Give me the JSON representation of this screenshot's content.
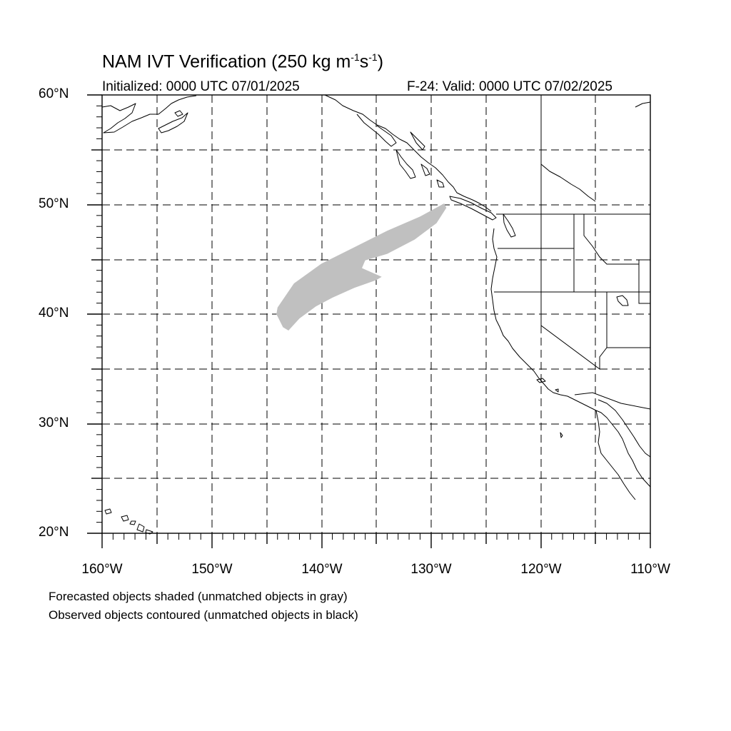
{
  "title": {
    "main": "NAM IVT Verification (250 kg m",
    "exp1": "-1",
    "mid": "s",
    "exp2": "-1",
    "end": ")"
  },
  "subtitle_left": "Initialized: 0000 UTC 07/01/2025",
  "subtitle_right": "F-24: Valid: 0000 UTC 07/02/2025",
  "map_extent": {
    "lon": [
      -160,
      -110
    ],
    "lat": [
      20,
      60
    ]
  },
  "y_tick_labels": [
    "60°N",
    "50°N",
    "40°N",
    "30°N",
    "20°N"
  ],
  "x_tick_labels": [
    "160°W",
    "150°W",
    "140°W",
    "130°W",
    "120°W",
    "110°W"
  ],
  "notes": [
    "Forecasted objects shaded (unmatched objects in gray)",
    "Observed objects contoured (unmatched objects in black)"
  ],
  "colors": {
    "unmatched_forecast": "#c0c0c0",
    "coastline": "#000000",
    "grid": "#000000"
  },
  "forecast_object": {
    "status": "unmatched",
    "outline_lonlat": [
      [
        -144.0,
        40.6
      ],
      [
        -142.5,
        42.8
      ],
      [
        -140.0,
        44.6
      ],
      [
        -137.0,
        46.1
      ],
      [
        -134.0,
        47.6
      ],
      [
        -131.0,
        48.9
      ],
      [
        -128.8,
        50.1
      ],
      [
        -128.6,
        49.7
      ],
      [
        -129.5,
        48.3
      ],
      [
        -131.5,
        46.8
      ],
      [
        -134.0,
        45.5
      ],
      [
        -136.0,
        44.9
      ],
      [
        -136.3,
        44.2
      ],
      [
        -134.5,
        43.4
      ],
      [
        -135.0,
        43.1
      ],
      [
        -137.0,
        42.4
      ],
      [
        -139.0,
        41.5
      ],
      [
        -140.5,
        40.7
      ],
      [
        -142.0,
        39.6
      ],
      [
        -143.0,
        38.5
      ],
      [
        -143.5,
        38.8
      ],
      [
        -144.1,
        40.0
      ]
    ]
  }
}
